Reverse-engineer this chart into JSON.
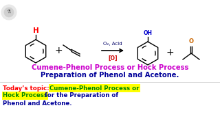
{
  "bg_color": "#ffffff",
  "title_line1": "Cumene-Phenol Process or Hock Process",
  "title_line2": "Preparation of Phenol and Acetone.",
  "title_color1": "#cc00cc",
  "title_color2": "#000099",
  "topic_prefix": "Today’s topic: ",
  "topic_prefix_color": "#ff0000",
  "topic_highlight_color": "#008800",
  "topic_highlight_bg": "#ffff00",
  "topic_rest_color": "#000099",
  "arrow_label_top": "O₂, Acid",
  "arrow_label_bottom": "[O]",
  "h_label_color": "#ff0000",
  "oh_color": "#0000cc",
  "o_color": "#cc6600",
  "line_color": "#000000",
  "plus_color": "#000000",
  "figsize": [
    3.2,
    1.8
  ],
  "dpi": 100
}
